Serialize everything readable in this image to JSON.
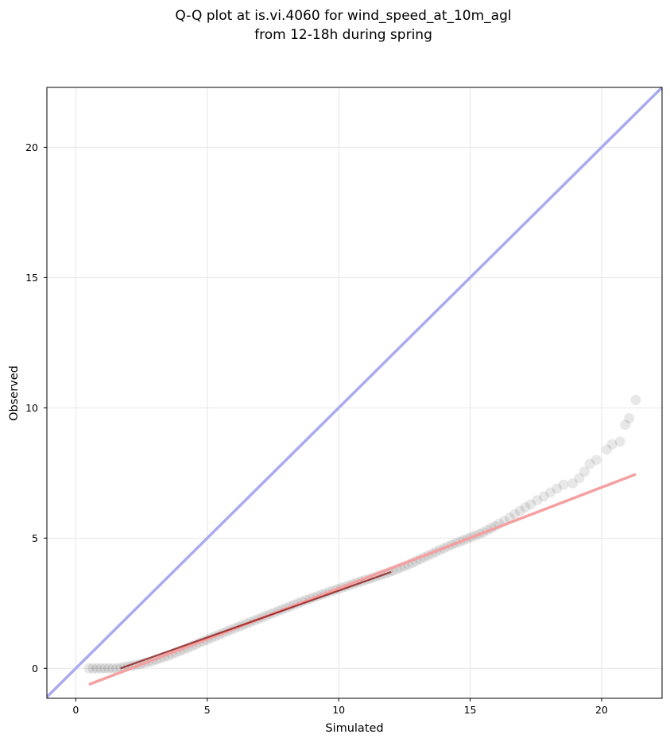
{
  "chart_data": {
    "type": "scatter",
    "title_lines": [
      "Q-Q plot at is.vi.4060 for wind_speed_at_10m_agl",
      "from 12-18h during spring"
    ],
    "xlabel": "Simulated",
    "ylabel": "Observed",
    "xlim": [
      -1.1,
      22.3
    ],
    "ylim": [
      -1.15,
      22.3
    ],
    "x_ticks": [
      0,
      5,
      10,
      15,
      20
    ],
    "y_ticks": [
      0,
      5,
      10,
      15,
      20
    ],
    "grid": true,
    "series": [
      {
        "kind": "scatter",
        "color": "#000000",
        "points": [
          [
            0.5,
            0.0
          ],
          [
            0.65,
            0.0
          ],
          [
            0.8,
            0.0
          ],
          [
            0.95,
            0.0
          ],
          [
            1.1,
            0.0
          ],
          [
            1.25,
            0.0
          ],
          [
            1.4,
            0.0
          ],
          [
            1.55,
            0.0
          ],
          [
            1.7,
            0.02
          ],
          [
            1.85,
            0.05
          ],
          [
            2.0,
            0.08
          ],
          [
            2.15,
            0.1
          ],
          [
            2.3,
            0.13
          ],
          [
            2.45,
            0.16
          ],
          [
            2.6,
            0.2
          ],
          [
            2.75,
            0.24
          ],
          [
            2.9,
            0.28
          ],
          [
            3.05,
            0.33
          ],
          [
            3.2,
            0.38
          ],
          [
            3.35,
            0.43
          ],
          [
            3.5,
            0.48
          ],
          [
            3.65,
            0.54
          ],
          [
            3.8,
            0.6
          ],
          [
            3.95,
            0.66
          ],
          [
            4.1,
            0.72
          ],
          [
            4.25,
            0.78
          ],
          [
            4.4,
            0.85
          ],
          [
            4.55,
            0.91
          ],
          [
            4.7,
            0.98
          ],
          [
            4.85,
            1.04
          ],
          [
            5.0,
            1.1
          ],
          [
            5.15,
            1.17
          ],
          [
            5.3,
            1.23
          ],
          [
            5.45,
            1.29
          ],
          [
            5.6,
            1.36
          ],
          [
            5.75,
            1.42
          ],
          [
            5.9,
            1.48
          ],
          [
            6.05,
            1.54
          ],
          [
            6.2,
            1.6
          ],
          [
            6.35,
            1.66
          ],
          [
            6.5,
            1.72
          ],
          [
            6.65,
            1.78
          ],
          [
            6.8,
            1.84
          ],
          [
            6.95,
            1.9
          ],
          [
            7.1,
            1.96
          ],
          [
            7.25,
            2.02
          ],
          [
            7.4,
            2.08
          ],
          [
            7.55,
            2.14
          ],
          [
            7.7,
            2.2
          ],
          [
            7.85,
            2.26
          ],
          [
            8.0,
            2.32
          ],
          [
            8.15,
            2.38
          ],
          [
            8.3,
            2.44
          ],
          [
            8.45,
            2.5
          ],
          [
            8.6,
            2.56
          ],
          [
            8.75,
            2.62
          ],
          [
            8.9,
            2.67
          ],
          [
            9.05,
            2.72
          ],
          [
            9.2,
            2.78
          ],
          [
            9.35,
            2.83
          ],
          [
            9.5,
            2.88
          ],
          [
            9.65,
            2.94
          ],
          [
            9.8,
            2.99
          ],
          [
            9.95,
            3.04
          ],
          [
            10.1,
            3.09
          ],
          [
            10.25,
            3.14
          ],
          [
            10.4,
            3.19
          ],
          [
            10.55,
            3.24
          ],
          [
            10.7,
            3.29
          ],
          [
            10.85,
            3.34
          ],
          [
            11.0,
            3.39
          ],
          [
            11.15,
            3.43
          ],
          [
            11.3,
            3.48
          ],
          [
            11.45,
            3.53
          ],
          [
            11.6,
            3.58
          ],
          [
            11.75,
            3.63
          ],
          [
            11.9,
            3.69
          ],
          [
            12.05,
            3.74
          ],
          [
            12.2,
            3.8
          ],
          [
            12.35,
            3.86
          ],
          [
            12.5,
            3.92
          ],
          [
            12.65,
            3.98
          ],
          [
            12.8,
            4.05
          ],
          [
            12.95,
            4.12
          ],
          [
            13.1,
            4.19
          ],
          [
            13.25,
            4.26
          ],
          [
            13.4,
            4.33
          ],
          [
            13.55,
            4.4
          ],
          [
            13.7,
            4.47
          ],
          [
            13.85,
            4.54
          ],
          [
            14.0,
            4.61
          ],
          [
            14.15,
            4.68
          ],
          [
            14.3,
            4.74
          ],
          [
            14.45,
            4.8
          ],
          [
            14.6,
            4.86
          ],
          [
            14.75,
            4.92
          ],
          [
            14.9,
            4.98
          ],
          [
            15.05,
            5.04
          ],
          [
            15.2,
            5.1
          ],
          [
            15.35,
            5.16
          ],
          [
            15.5,
            5.22
          ],
          [
            15.65,
            5.3
          ],
          [
            15.8,
            5.38
          ],
          [
            15.95,
            5.46
          ],
          [
            16.1,
            5.55
          ],
          [
            16.3,
            5.65
          ],
          [
            16.5,
            5.78
          ],
          [
            16.7,
            5.92
          ],
          [
            16.9,
            6.05
          ],
          [
            17.1,
            6.18
          ],
          [
            17.3,
            6.3
          ],
          [
            17.55,
            6.45
          ],
          [
            17.8,
            6.6
          ],
          [
            18.05,
            6.75
          ],
          [
            18.3,
            6.9
          ],
          [
            18.55,
            7.05
          ],
          [
            18.9,
            7.1
          ],
          [
            19.15,
            7.3
          ],
          [
            19.35,
            7.55
          ],
          [
            19.55,
            7.85
          ],
          [
            19.8,
            8.0
          ],
          [
            20.2,
            8.4
          ],
          [
            20.4,
            8.6
          ],
          [
            20.7,
            8.7
          ],
          [
            20.9,
            9.35
          ],
          [
            21.05,
            9.6
          ],
          [
            21.3,
            10.3
          ]
        ]
      },
      {
        "kind": "line",
        "color": "#aaaaf0",
        "points": [
          [
            -1.1,
            -1.1
          ],
          [
            22.3,
            22.3
          ]
        ]
      },
      {
        "kind": "line",
        "color": "#f5a0a0",
        "points": [
          [
            0.5,
            -0.62
          ],
          [
            21.3,
            7.45
          ]
        ]
      },
      {
        "kind": "line",
        "color": "#8b1010",
        "points": [
          [
            1.7,
            0.0
          ],
          [
            12.0,
            3.7
          ]
        ]
      }
    ]
  }
}
